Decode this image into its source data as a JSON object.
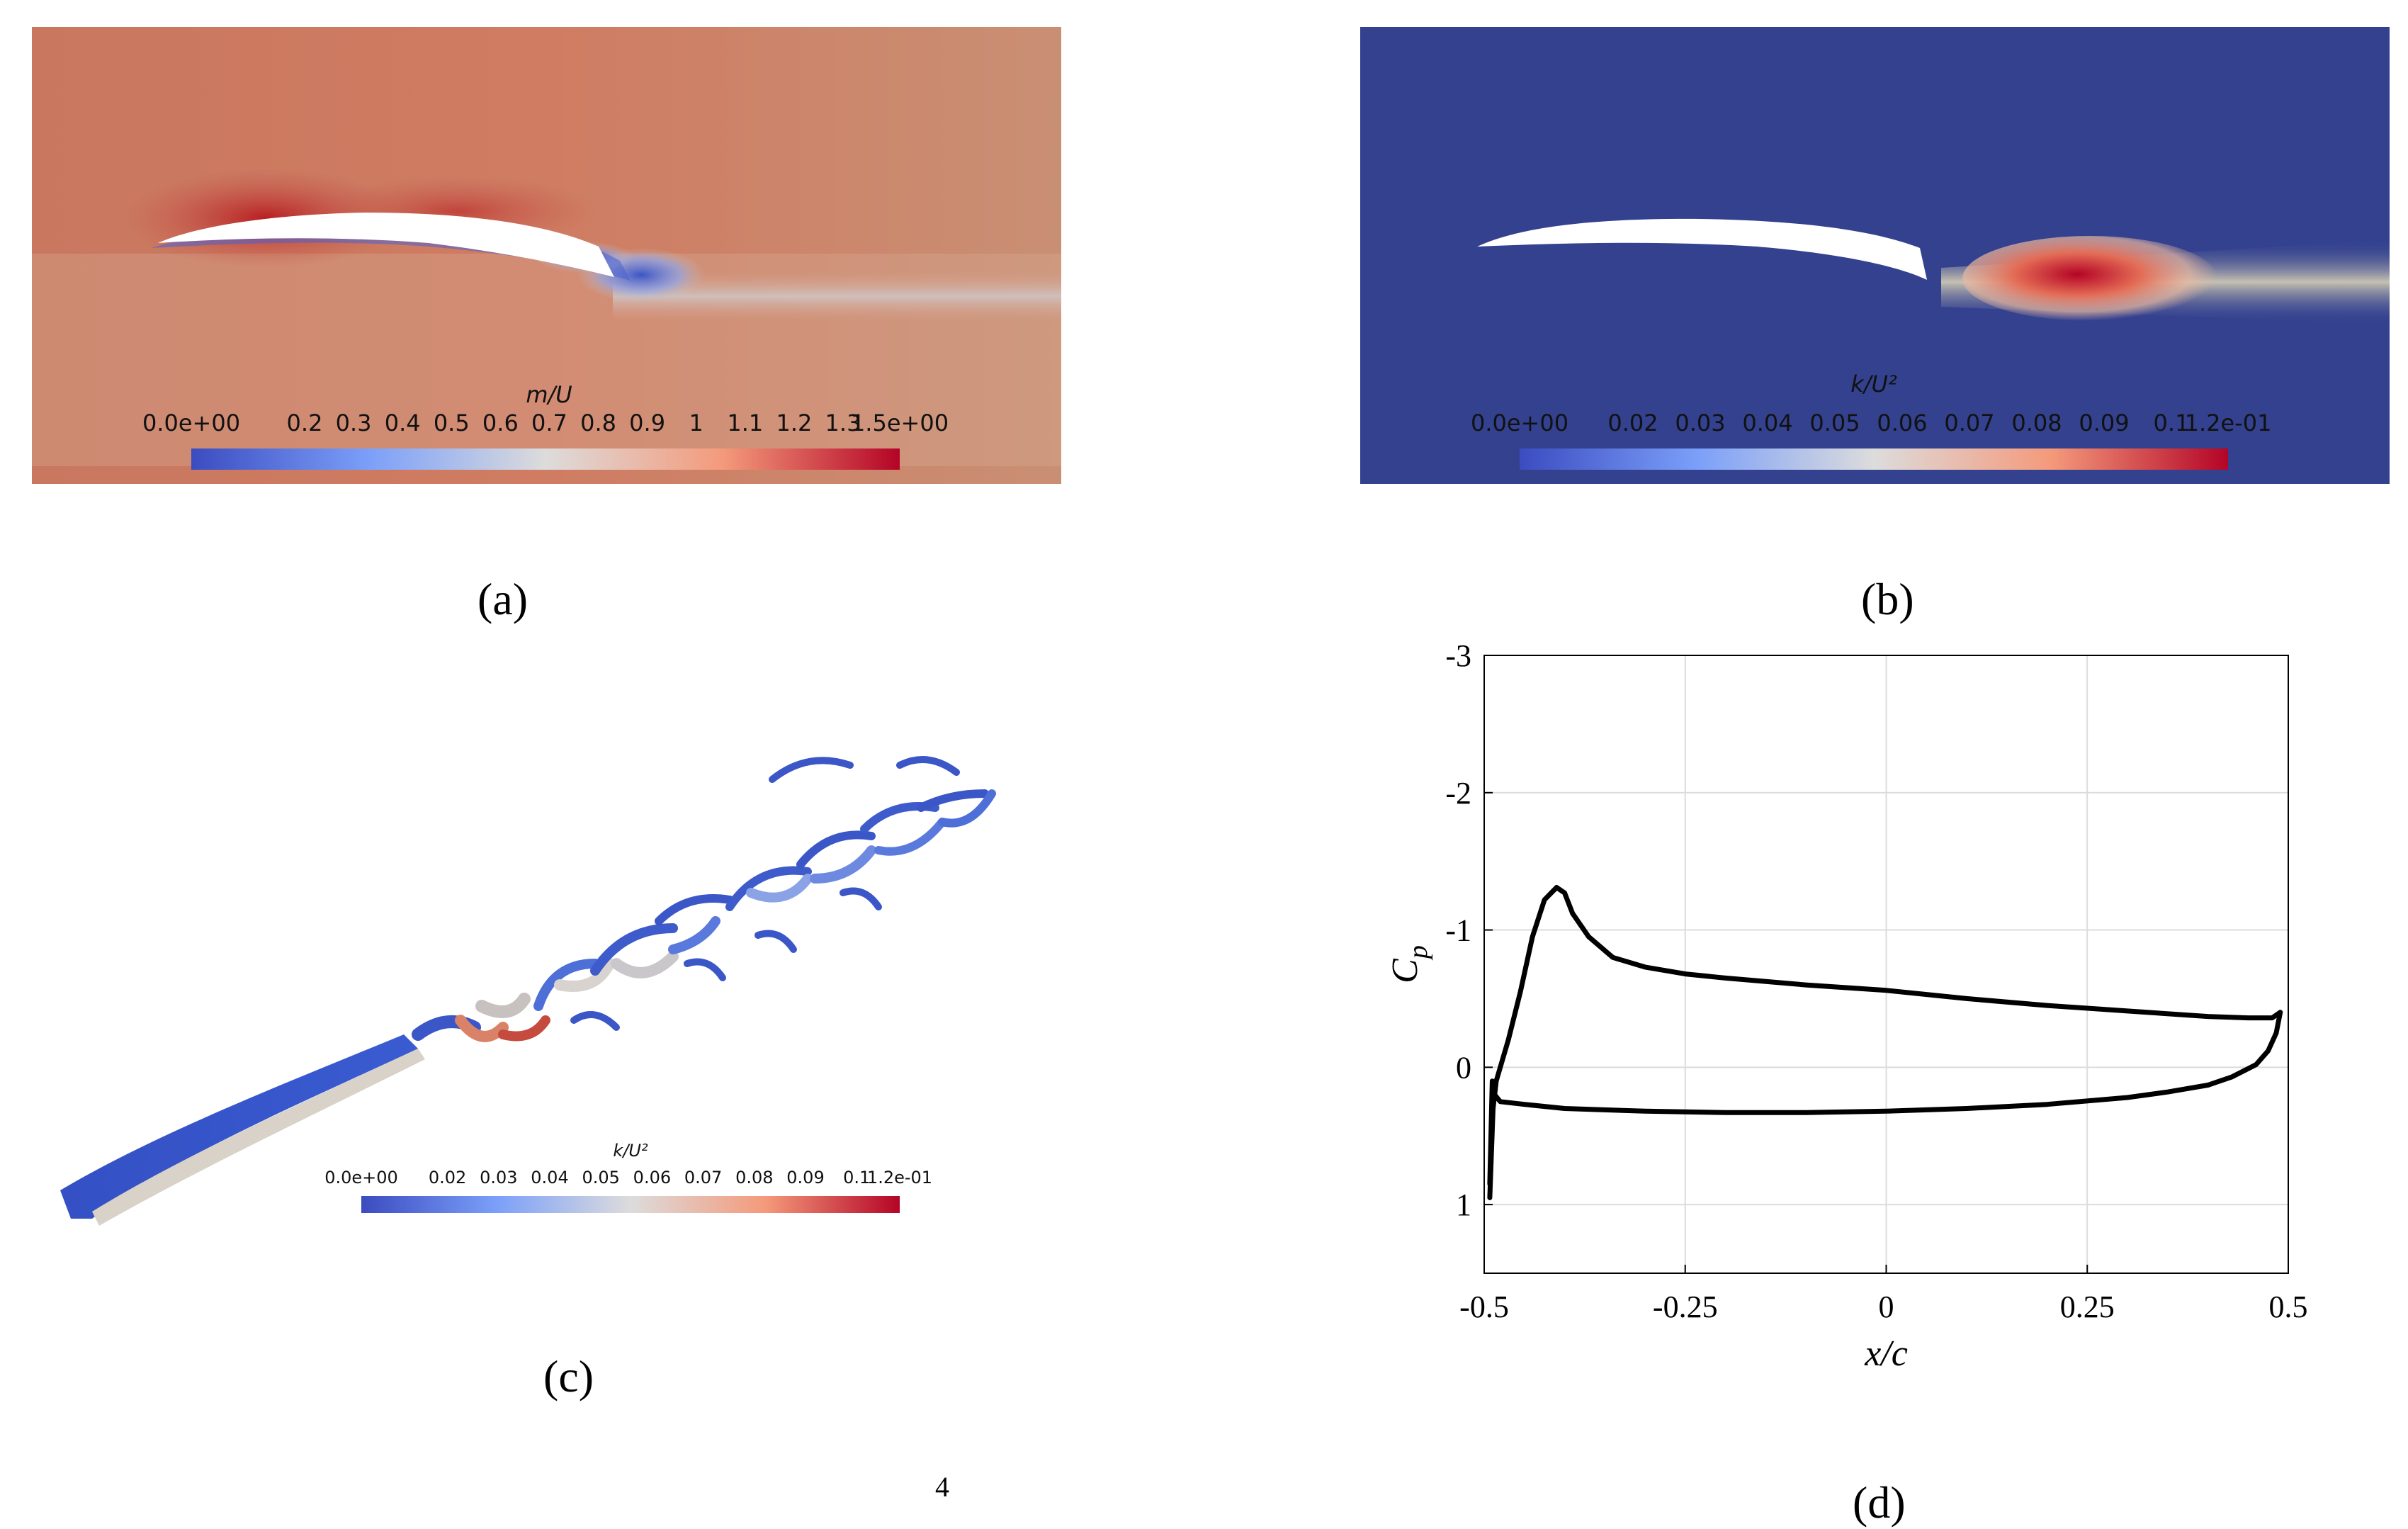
{
  "panel_a": {
    "caption": "(a)",
    "colorbar_title": "m/U",
    "colorbar_ticks": [
      "0.0e+00",
      "0.2",
      "0.3",
      "0.4",
      "0.5",
      "0.6",
      "0.7",
      "0.8",
      "0.9",
      "1",
      "1.1",
      "1.2",
      "1.3",
      "1.5e+00"
    ],
    "background_color": "#c98a72"
  },
  "panel_b": {
    "caption": "(b)",
    "colorbar_title": "k/U²",
    "colorbar_ticks": [
      "0.0e+00",
      "0.02",
      "0.03",
      "0.04",
      "0.05",
      "0.06",
      "0.07",
      "0.08",
      "0.09",
      "0.1",
      "1.2e-01"
    ],
    "background_color": "#33418f"
  },
  "panel_c": {
    "caption": "(c)",
    "colorbar_title": "k/U²",
    "colorbar_ticks": [
      "0.0e+00",
      "0.02",
      "0.03",
      "0.04",
      "0.05",
      "0.06",
      "0.07",
      "0.08",
      "0.09",
      "0.1",
      "1.2e-01"
    ]
  },
  "panel_d": {
    "caption": "(d)"
  },
  "stray_mark": "4",
  "colors": {
    "cool": "#3b4cc0",
    "warm": "#b40426",
    "curve": "#000000",
    "grid": "#dcdcdc"
  },
  "chart_data": {
    "type": "line",
    "title": "",
    "xlabel": "x/c",
    "ylabel": "C_p",
    "xlim": [
      -0.5,
      0.5
    ],
    "ylim": [
      -3,
      1.5
    ],
    "y_reversed": true,
    "xticks": [
      "-0.5",
      "-0.25",
      "0",
      "0.25",
      "0.5"
    ],
    "yticks": [
      "-3",
      "-2",
      "-1",
      "0",
      "1"
    ],
    "grid": true,
    "series": [
      {
        "x": [
          -0.493,
          -0.489,
          -0.485,
          -0.48,
          -0.47,
          -0.455,
          -0.44,
          -0.425,
          -0.41,
          -0.4,
          -0.39,
          -0.37,
          -0.34,
          -0.3,
          -0.25,
          -0.2,
          -0.1,
          0.0,
          0.1,
          0.2,
          0.3,
          0.4,
          0.45,
          0.48,
          0.49
        ],
        "y": [
          0.95,
          0.3,
          0.1,
          0.0,
          -0.2,
          -0.55,
          -0.95,
          -1.22,
          -1.31,
          -1.27,
          -1.12,
          -0.95,
          -0.8,
          -0.73,
          -0.68,
          -0.65,
          -0.6,
          -0.56,
          -0.5,
          -0.45,
          -0.41,
          -0.37,
          -0.36,
          -0.36,
          -0.4
        ]
      },
      {
        "x": [
          -0.493,
          -0.49,
          -0.487,
          -0.48,
          -0.45,
          -0.4,
          -0.3,
          -0.2,
          -0.1,
          0.0,
          0.1,
          0.2,
          0.3,
          0.35,
          0.4,
          0.43,
          0.46,
          0.475,
          0.485,
          0.49
        ],
        "y": [
          0.85,
          0.1,
          0.2,
          0.25,
          0.27,
          0.3,
          0.32,
          0.33,
          0.33,
          0.32,
          0.3,
          0.27,
          0.22,
          0.18,
          0.13,
          0.07,
          -0.02,
          -0.12,
          -0.25,
          -0.4
        ]
      }
    ]
  }
}
